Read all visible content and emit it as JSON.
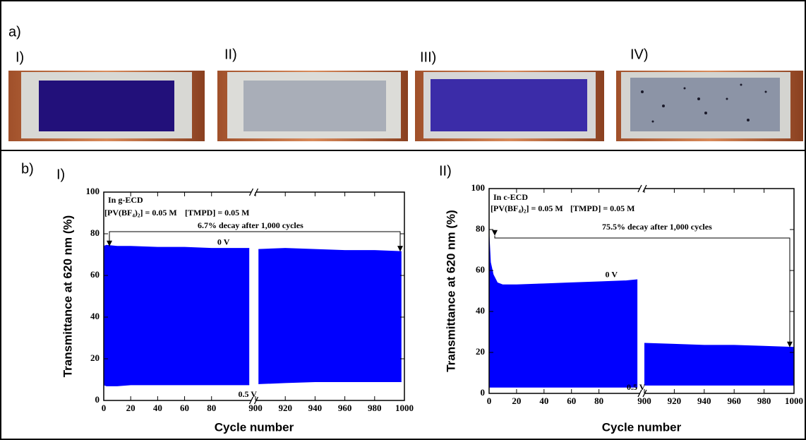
{
  "panel_a": {
    "label": "a)",
    "photos": [
      "I)",
      "II)",
      "III)",
      "IV)"
    ]
  },
  "panel_b": {
    "label": "b)"
  },
  "chart_data": [
    {
      "type": "area",
      "panel": "I)",
      "xlabel": "Cycle number",
      "ylabel": "Transmittance at 620 nm (%)",
      "annotations": [
        "In g-ECD",
        "[PV(BF₄)₂] = 0.05 M",
        "[TMPD] = 0.05 M",
        "6.7% decay after 1,000 cycles"
      ],
      "ylim": [
        0,
        100
      ],
      "yticks": [
        0,
        20,
        40,
        60,
        80,
        100
      ],
      "xsegments": [
        {
          "xlim": [
            0,
            110
          ],
          "xticks": [
            0,
            20,
            40,
            60,
            80
          ]
        },
        {
          "xlim": [
            900,
            1000
          ],
          "xticks": [
            900,
            920,
            940,
            960,
            980,
            1000
          ]
        }
      ],
      "x": [
        0,
        2,
        10,
        20,
        40,
        60,
        80,
        100,
        108,
        902,
        920,
        940,
        960,
        980,
        998
      ],
      "series": [
        {
          "name": "0 V",
          "color": "#0000ff",
          "values": [
            74,
            74.5,
            74,
            74,
            73.5,
            73.5,
            73,
            73,
            73,
            72.5,
            73,
            72.5,
            72,
            72,
            71.5
          ]
        },
        {
          "name": "0.5 V",
          "color": "#0000ff",
          "values": [
            7.5,
            7,
            7,
            7.5,
            7.5,
            7.5,
            7.5,
            7.5,
            7.5,
            8,
            8.5,
            9,
            9,
            9,
            9
          ]
        }
      ]
    },
    {
      "type": "area",
      "panel": "II)",
      "xlabel": "Cycle number",
      "ylabel": "Transmittance at 620 nm (%)",
      "annotations": [
        "In c-ECD",
        "[PV(BF₄)₂] = 0.05 M",
        "[TMPD] = 0.05 M",
        "75.5% decay after 1,000 cycles"
      ],
      "ylim": [
        0,
        100
      ],
      "yticks": [
        0,
        20,
        40,
        60,
        80,
        100
      ],
      "xsegments": [
        {
          "xlim": [
            0,
            110
          ],
          "xticks": [
            0,
            20,
            40,
            60,
            80
          ]
        },
        {
          "xlim": [
            900,
            1000
          ],
          "xticks": [
            900,
            920,
            940,
            960,
            980,
            1000
          ]
        }
      ],
      "x": [
        0,
        1,
        3,
        6,
        10,
        20,
        40,
        60,
        80,
        100,
        108,
        900,
        920,
        940,
        960,
        980,
        1000
      ],
      "series": [
        {
          "name": "0 V",
          "color": "#0000ff",
          "values": [
            77,
            64,
            58,
            54,
            53,
            53,
            53.5,
            54,
            54.5,
            55,
            55.5,
            24.5,
            24,
            23.5,
            23.5,
            23,
            22.5
          ]
        },
        {
          "name": "0.5 V",
          "color": "#0000ff",
          "values": [
            3,
            3,
            3,
            3,
            3,
            3,
            3,
            3,
            3,
            3,
            3,
            4,
            4,
            4,
            4,
            4,
            4
          ]
        }
      ]
    }
  ]
}
